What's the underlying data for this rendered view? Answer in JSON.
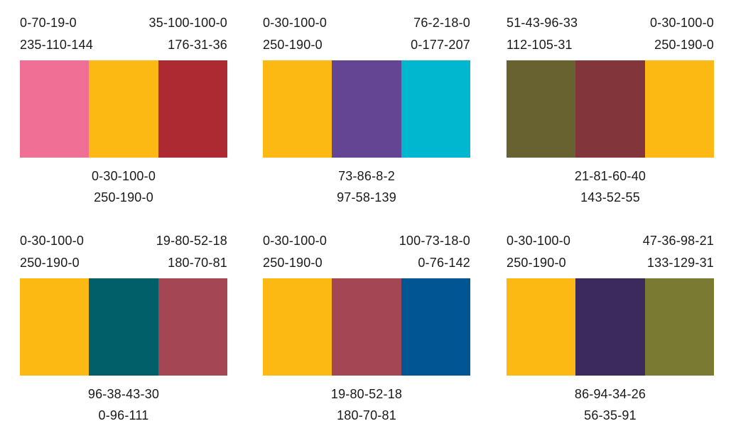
{
  "palettes": [
    {
      "top_left": {
        "cmyk": "0-70-19-0",
        "rgb": "235-110-144"
      },
      "top_right": {
        "cmyk": "35-100-100-0",
        "rgb": "176-31-36"
      },
      "bottom": {
        "cmyk": "0-30-100-0",
        "rgb": "250-190-0"
      },
      "swatch_colors": [
        "#F07095",
        "#FDB913",
        "#AE2A32"
      ]
    },
    {
      "top_left": {
        "cmyk": "0-30-100-0",
        "rgb": "250-190-0"
      },
      "top_right": {
        "cmyk": "76-2-18-0",
        "rgb": "0-177-207"
      },
      "bottom": {
        "cmyk": "73-86-8-2",
        "rgb": "97-58-139"
      },
      "swatch_colors": [
        "#FDB913",
        "#634593",
        "#00B7CF"
      ]
    },
    {
      "top_left": {
        "cmyk": "51-43-96-33",
        "rgb": "112-105-31"
      },
      "top_right": {
        "cmyk": "0-30-100-0",
        "rgb": "250-190-0"
      },
      "bottom": {
        "cmyk": "21-81-60-40",
        "rgb": "143-52-55"
      },
      "swatch_colors": [
        "#676230",
        "#82353B",
        "#FDB913"
      ]
    },
    {
      "top_left": {
        "cmyk": "0-30-100-0",
        "rgb": "250-190-0"
      },
      "top_right": {
        "cmyk": "19-80-52-18",
        "rgb": "180-70-81"
      },
      "bottom": {
        "cmyk": "96-38-43-30",
        "rgb": "0-96-111"
      },
      "swatch_colors": [
        "#FDB913",
        "#005F68",
        "#A44654"
      ]
    },
    {
      "top_left": {
        "cmyk": "0-30-100-0",
        "rgb": "250-190-0"
      },
      "top_right": {
        "cmyk": "100-73-18-0",
        "rgb": "0-76-142"
      },
      "bottom": {
        "cmyk": "19-80-52-18",
        "rgb": "180-70-81"
      },
      "swatch_colors": [
        "#FDB913",
        "#A44654",
        "#015592"
      ]
    },
    {
      "top_left": {
        "cmyk": "0-30-100-0",
        "rgb": "250-190-0"
      },
      "top_right": {
        "cmyk": "47-36-98-21",
        "rgb": "133-129-31"
      },
      "bottom": {
        "cmyk": "86-94-34-26",
        "rgb": "56-35-91"
      },
      "swatch_colors": [
        "#FDB913",
        "#3C2A5E",
        "#7B7A33"
      ]
    }
  ]
}
